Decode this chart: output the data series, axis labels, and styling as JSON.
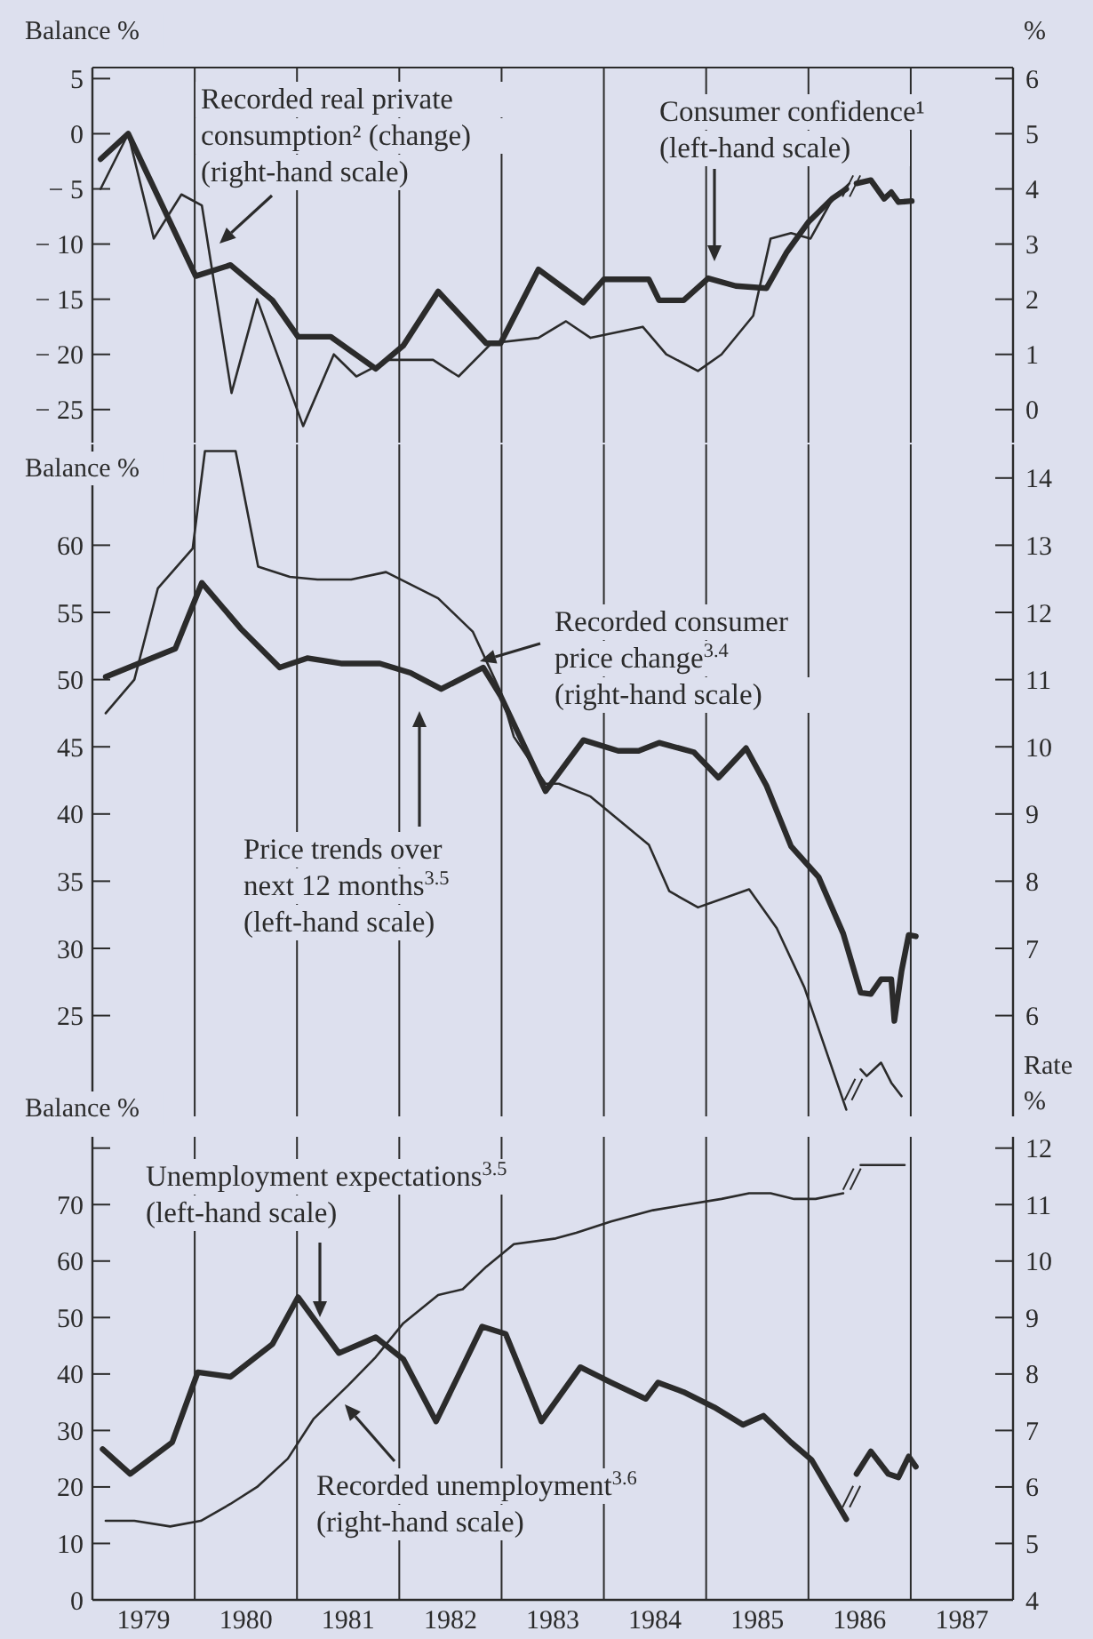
{
  "chart_data": [
    {
      "type": "line",
      "ylabel": "Balance %",
      "y2label": "%",
      "xlim": [
        1979,
        1988
      ],
      "ylim": [
        -28,
        6
      ],
      "yticks": [
        -25,
        -20,
        -15,
        -10,
        -5,
        0,
        5
      ],
      "y2lim": [
        -0.6,
        6.2
      ],
      "y2ticks": [
        0,
        1,
        2,
        3,
        4,
        5,
        6
      ],
      "tick_labels": "y",
      "ref_lines": [
        {
          "axis": "x",
          "value": 1980,
          "color": "#2b2b2b"
        },
        {
          "axis": "x",
          "value": 1981,
          "color": "#2b2b2b"
        },
        {
          "axis": "x",
          "value": 1982,
          "color": "#2b2b2b"
        },
        {
          "axis": "x",
          "value": 1983,
          "color": "#2b2b2b"
        },
        {
          "axis": "x",
          "value": 1984,
          "color": "#2b2b2b"
        },
        {
          "axis": "x",
          "value": 1985,
          "color": "#2b2b2b"
        },
        {
          "axis": "x",
          "value": 1986,
          "color": "#2b2b2b"
        },
        {
          "axis": "x",
          "value": 1987,
          "color": "#2b2b2b"
        }
      ],
      "annotations": [
        "Recorded real private consumption² (change) (right-hand scale)",
        "Consumer confidence¹ (left-hand scale)"
      ],
      "series": [
        {
          "color": "#2b2b2b",
          "x": [
            1979.08,
            1979.35,
            1980.01,
            1980.35,
            1980.76,
            1981.01,
            1981.33,
            1981.77,
            1982.04,
            1982.38,
            1982.85,
            1982.99,
            1983.36,
            1983.8,
            1984.0,
            1984.44,
            1984.54,
            1984.78,
            1985.02,
            1985.29,
            1985.59,
            1985.79,
            1986.0,
            1986.23,
            1986.37,
            1986.42,
            1986.47,
            1986.61,
            1986.74,
            1986.81,
            1986.88,
            1987.01
          ],
          "values": [
            -2.3,
            0,
            -12.9,
            -11.9,
            -15.1,
            -18.4,
            -18.4,
            -21.3,
            -19.2,
            -14.3,
            -19,
            -19,
            -12.3,
            -15.3,
            -13.2,
            -13.2,
            -15.1,
            -15.1,
            -13.1,
            -13.8,
            -14,
            -10.7,
            -8,
            -5.9,
            -5,
            null,
            -4.5,
            -4.2,
            -5.9,
            -5.3,
            -6.2,
            -6.1
          ]
        },
        {
          "color": "#2b2b2b",
          "axis": "y2",
          "x": [
            1979.08,
            1979.35,
            1979.6,
            1979.87,
            1980.07,
            1980.36,
            1980.61,
            1981.06,
            1981.36,
            1981.58,
            1981.89,
            1982.33,
            1982.58,
            1982.9,
            1983.36,
            1983.63,
            1983.87,
            1984.38,
            1984.61,
            1984.92,
            1985.15,
            1985.46,
            1985.63,
            1985.83,
            1986.02,
            1986.23,
            1986.4
          ],
          "values": [
            4,
            5,
            3.1,
            3.9,
            3.7,
            0.3,
            2,
            -0.3,
            1,
            0.6,
            0.9,
            0.9,
            0.6,
            1.2,
            1.3,
            1.6,
            1.3,
            1.5,
            1,
            0.7,
            1,
            1.7,
            3.1,
            3.2,
            3.1,
            3.8,
            4.1
          ]
        }
      ]
    },
    {
      "type": "line",
      "ylabel": "Balance %",
      "xlim": [
        1979,
        1988
      ],
      "ylim": [
        17.5,
        67.5
      ],
      "yticks": [
        25,
        30,
        35,
        40,
        45,
        50,
        55,
        60
      ],
      "y2lim": [
        4.5,
        14.5
      ],
      "y2ticks": [
        6,
        7,
        8,
        9,
        10,
        11,
        12,
        13,
        14
      ],
      "tick_labels": "y",
      "ref_lines": [
        {
          "axis": "x",
          "value": 1980,
          "color": "#2b2b2b"
        },
        {
          "axis": "x",
          "value": 1981,
          "color": "#2b2b2b"
        },
        {
          "axis": "x",
          "value": 1982,
          "color": "#2b2b2b"
        },
        {
          "axis": "x",
          "value": 1983,
          "color": "#2b2b2b"
        },
        {
          "axis": "x",
          "value": 1984,
          "color": "#2b2b2b"
        },
        {
          "axis": "x",
          "value": 1985,
          "color": "#2b2b2b"
        },
        {
          "axis": "x",
          "value": 1986,
          "color": "#2b2b2b"
        },
        {
          "axis": "x",
          "value": 1987,
          "color": "#2b2b2b"
        }
      ],
      "annotations": [
        "Recorded consumer price change$^{3.4}$ (right-hand scale)",
        "Price trends over next 12 months$^{3.5}$ (left-hand scale)"
      ],
      "series": [
        {
          "color": "#2b2b2b",
          "x": [
            1979.13,
            1979.81,
            1980.07,
            1980.45,
            1980.83,
            1981.1,
            1981.43,
            1981.81,
            1982.11,
            1982.41,
            1982.82,
            1982.99,
            1983.43,
            1983.8,
            1984.14,
            1984.34,
            1984.54,
            1984.88,
            1985.12,
            1985.39,
            1985.59,
            1985.83,
            1986.1,
            1986.34,
            1986.51,
            1986.61,
            1986.71,
            1986.81,
            1986.84,
            1986.91,
            1986.98,
            1987.05
          ],
          "values": [
            50.2,
            52.3,
            57.2,
            53.8,
            50.9,
            51.6,
            51.2,
            51.2,
            50.5,
            49.3,
            50.9,
            48.8,
            41.7,
            45.5,
            44.7,
            44.7,
            45.3,
            44.6,
            42.7,
            44.9,
            42.1,
            37.6,
            35.3,
            31.1,
            26.7,
            26.6,
            27.7,
            27.7,
            24.6,
            28.3,
            31,
            30.9
          ]
        },
        {
          "color": "#2b2b2b",
          "axis": "y2",
          "x": [
            1979.13,
            1979.41,
            1979.64,
            1979.98,
            1980.1,
            1980.4,
            1980.62,
            1980.93,
            1981.2,
            1981.53,
            1981.87,
            1982.38,
            1982.72,
            1982.99,
            1983.12,
            1983.43,
            1983.56,
            1983.87,
            1984.44,
            1984.64,
            1984.92,
            1985.42,
            1985.69,
            1985.96,
            1986.37,
            1986.44,
            1986.51,
            1986.57,
            1986.71,
            1986.81,
            1986.91
          ],
          "values": [
            10.5,
            11,
            12.36,
            12.95,
            14.4,
            14.4,
            12.68,
            12.53,
            12.49,
            12.49,
            12.6,
            12.21,
            11.71,
            10.82,
            10.15,
            9.45,
            9.45,
            9.26,
            8.54,
            7.85,
            7.61,
            7.88,
            7.3,
            6.42,
            4.6,
            null,
            5.2,
            5.1,
            5.3,
            5,
            4.8
          ]
        }
      ]
    },
    {
      "type": "line",
      "ylabel": "Balance %",
      "y2label": "Rate %",
      "xlim": [
        1979,
        1988
      ],
      "ylim": [
        0,
        82
      ],
      "yticks": [
        0,
        10,
        20,
        30,
        40,
        50,
        60,
        70,
        {
          "value": 80,
          "label": null
        }
      ],
      "y2lim": [
        4,
        12.2
      ],
      "y2ticks": [
        4,
        5,
        6,
        7,
        8,
        9,
        10,
        11,
        12
      ],
      "xticks": [
        {
          "value": 1979.5,
          "label": "1979"
        },
        {
          "value": 1980.5,
          "label": "1980"
        },
        {
          "value": 1981.5,
          "label": "1981"
        },
        {
          "value": 1982.5,
          "label": "1982"
        },
        {
          "value": 1983.5,
          "label": "1983"
        },
        {
          "value": 1984.5,
          "label": "1984"
        },
        {
          "value": 1985.5,
          "label": "1985"
        },
        {
          "value": 1986.5,
          "label": "1986"
        },
        {
          "value": 1987.5,
          "label": "1987"
        }
      ],
      "ref_lines": [
        {
          "axis": "x",
          "value": 1980,
          "color": "#2b2b2b"
        },
        {
          "axis": "x",
          "value": 1981,
          "color": "#2b2b2b"
        },
        {
          "axis": "x",
          "value": 1982,
          "color": "#2b2b2b"
        },
        {
          "axis": "x",
          "value": 1983,
          "color": "#2b2b2b"
        },
        {
          "axis": "x",
          "value": 1984,
          "color": "#2b2b2b"
        },
        {
          "axis": "x",
          "value": 1985,
          "color": "#2b2b2b"
        },
        {
          "axis": "x",
          "value": 1986,
          "color": "#2b2b2b"
        },
        {
          "axis": "x",
          "value": 1987,
          "color": "#2b2b2b"
        }
      ],
      "annotations": [
        "Unemployment expectations$^{3.5}$ (left-hand scale)",
        "Recorded unemployment$^{3.6}$ (right-hand scale)"
      ],
      "series": [
        {
          "color": "#2b2b2b",
          "x": [
            1979.1,
            1979.37,
            1979.78,
            1980.03,
            1980.35,
            1980.76,
            1981.01,
            1981.41,
            1981.77,
            1982.04,
            1982.36,
            1982.81,
            1983.04,
            1983.39,
            1983.77,
            1984.07,
            1984.41,
            1984.53,
            1984.78,
            1985.08,
            1985.36,
            1985.56,
            1985.83,
            1986.03,
            1986.37,
            1986.42,
            1986.47,
            1986.61,
            1986.78,
            1986.88,
            1986.98,
            1987.05
          ],
          "values": [
            26.7,
            22.3,
            27.9,
            40.3,
            39.5,
            45.3,
            53.6,
            43.7,
            46.5,
            42.6,
            31.6,
            48.4,
            47.1,
            31.6,
            41.2,
            38.5,
            35.6,
            38.5,
            36.8,
            34.1,
            31,
            32.6,
            27.9,
            24.8,
            14.3,
            null,
            22.3,
            26.3,
            22.3,
            21.7,
            25.4,
            23.6
          ]
        },
        {
          "color": "#2b2b2b",
          "axis": "y2",
          "x": [
            1979.13,
            1979.41,
            1979.76,
            1980.06,
            1980.35,
            1980.61,
            1980.91,
            1981.16,
            1981.5,
            1981.77,
            1982.04,
            1982.38,
            1982.62,
            1982.85,
            1983.12,
            1983.53,
            1983.73,
            1984.07,
            1984.48,
            1984.81,
            1985.15,
            1985.42,
            1985.63,
            1985.86,
            1986.07,
            1986.34,
            1986.42,
            1986.51,
            1986.94
          ],
          "values": [
            5.4,
            5.4,
            5.3,
            5.4,
            5.7,
            6,
            6.5,
            7.2,
            7.8,
            8.3,
            8.9,
            9.4,
            9.5,
            9.9,
            10.3,
            10.4,
            10.5,
            10.7,
            10.9,
            11,
            11.1,
            11.2,
            11.2,
            11.1,
            11.1,
            11.2,
            null,
            11.7,
            11.7
          ]
        }
      ]
    }
  ]
}
